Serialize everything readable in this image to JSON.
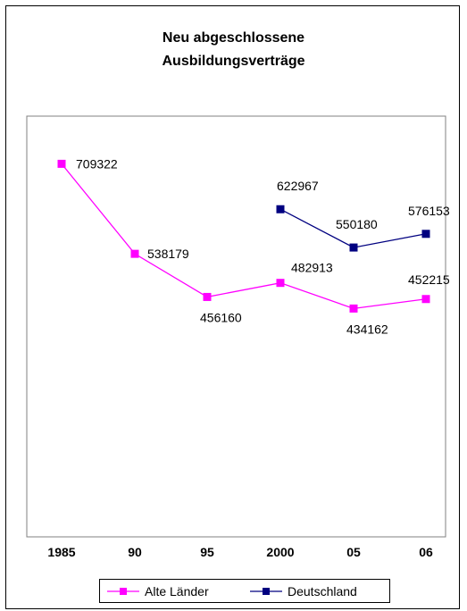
{
  "chart_data": {
    "type": "line",
    "title": [
      "Neu abgeschlossene",
      "Ausbildungsverträge"
    ],
    "categories": [
      "1985",
      "90",
      "95",
      "2000",
      "05",
      "06"
    ],
    "ylim": [
      0,
      800000
    ],
    "grid": false,
    "legend_position": "bottom",
    "series": [
      {
        "name": "Alte Länder",
        "color": "#FF00FF",
        "values": [
          709322,
          538179,
          456160,
          482913,
          434162,
          452215
        ],
        "labels": [
          "709322",
          "538179",
          "456160",
          "482913",
          "434162",
          "452215"
        ]
      },
      {
        "name": "Deutschland",
        "color": "#000080",
        "values": [
          null,
          null,
          null,
          622967,
          550180,
          576153
        ],
        "labels": [
          null,
          null,
          null,
          "622967",
          "550180",
          "576153"
        ]
      }
    ]
  }
}
